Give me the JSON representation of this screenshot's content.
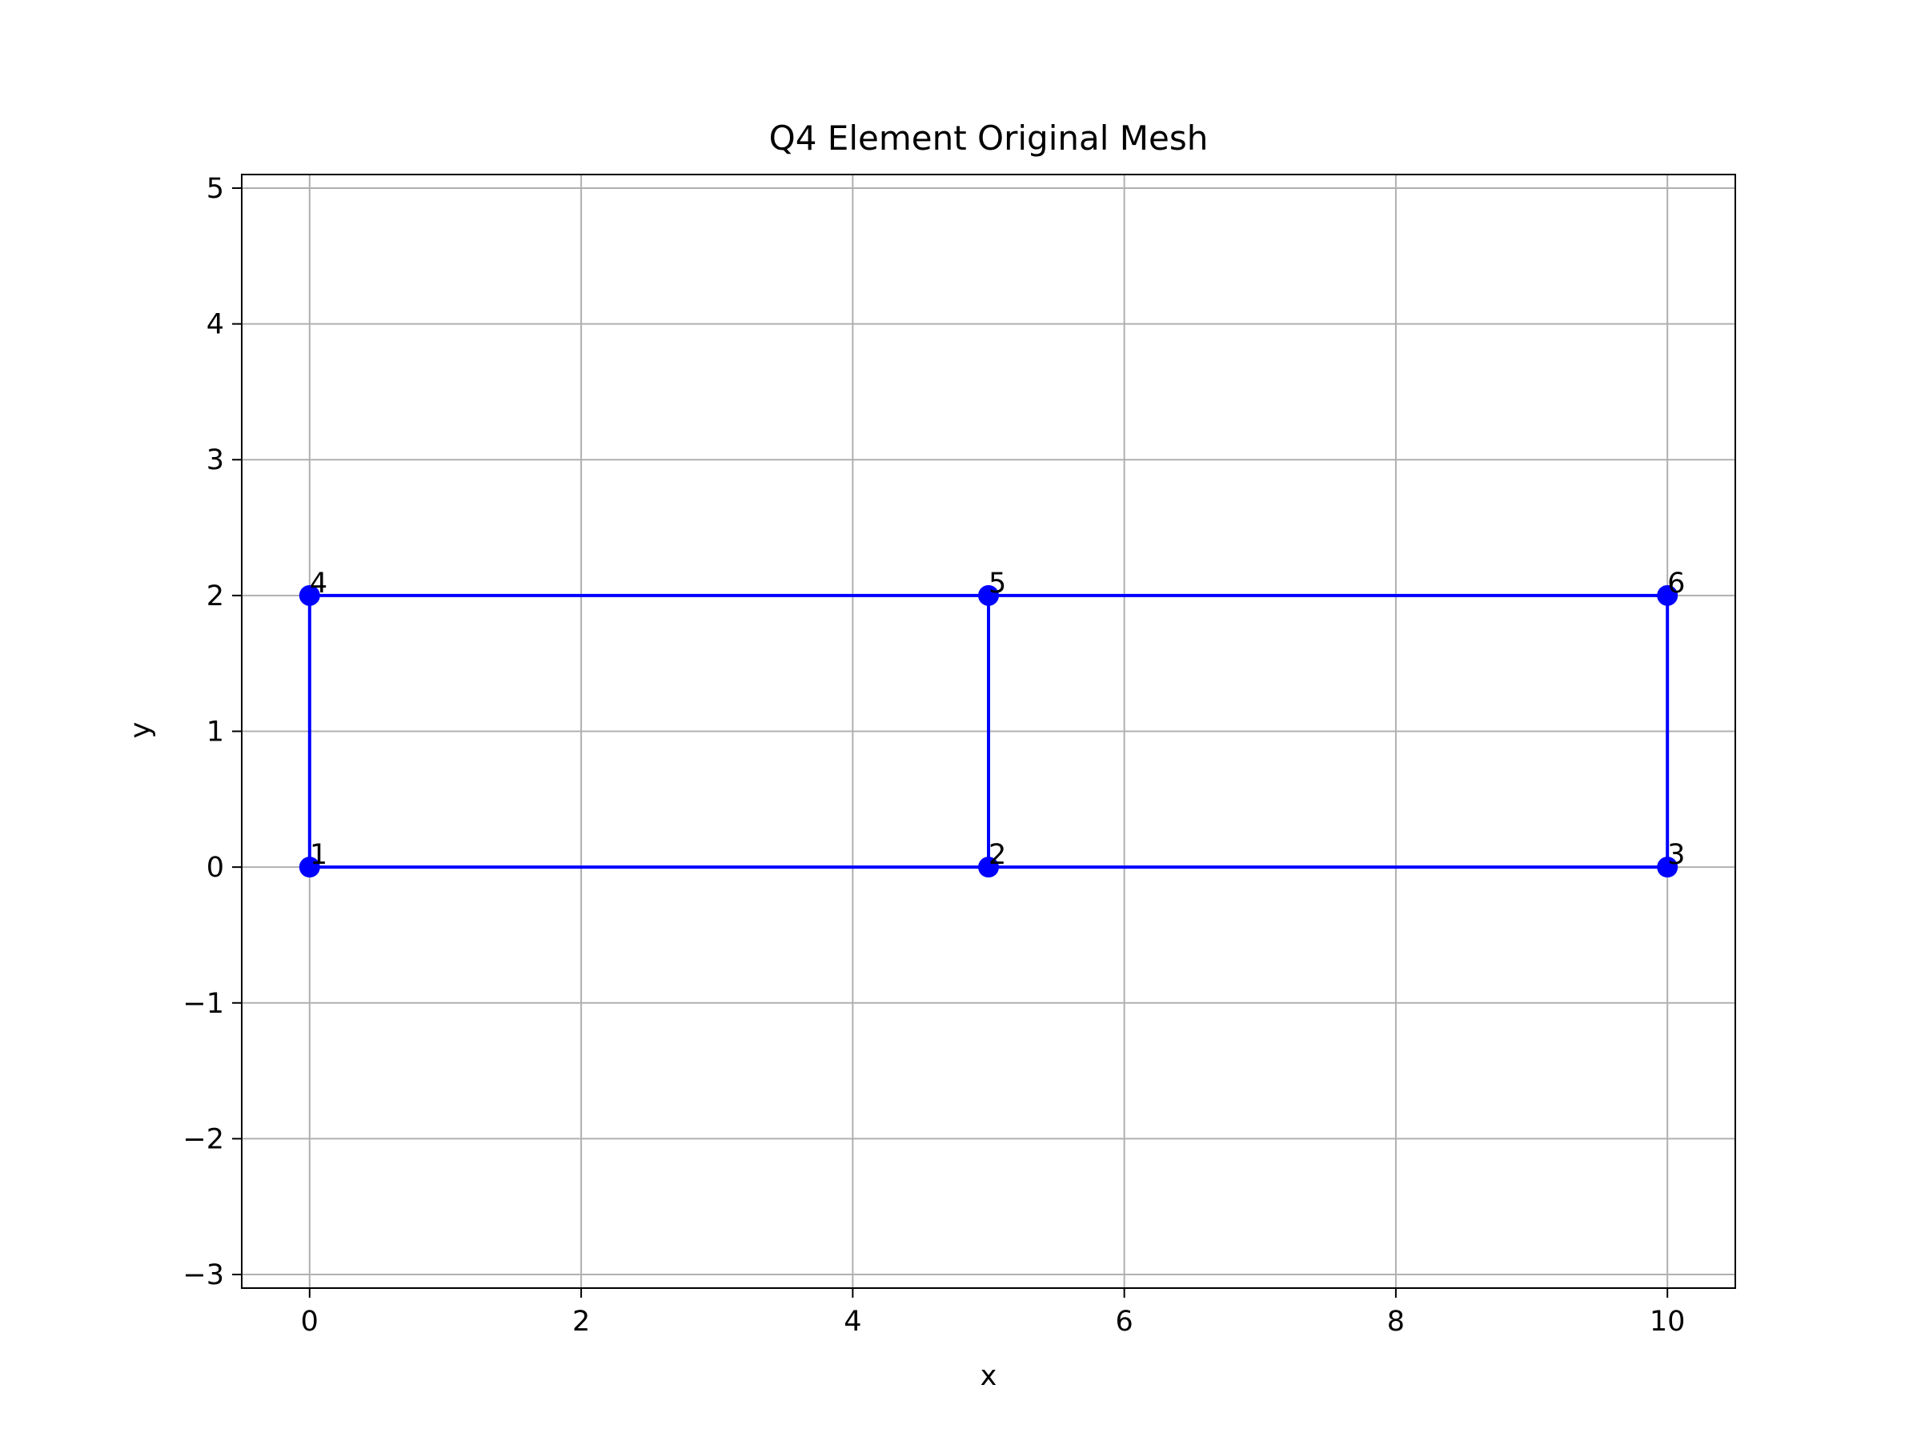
{
  "chart_data": {
    "type": "mesh",
    "title": "Q4 Element Original Mesh",
    "xlabel": "x",
    "ylabel": "y",
    "xlim": [
      -0.5,
      10.5
    ],
    "ylim": [
      -3.1,
      5.1
    ],
    "grid": true,
    "xticks": [
      0,
      2,
      4,
      6,
      8,
      10
    ],
    "xtick_labels": [
      "0",
      "2",
      "4",
      "6",
      "8",
      "10"
    ],
    "yticks": [
      -3,
      -2,
      -1,
      0,
      1,
      2,
      3,
      4,
      5
    ],
    "ytick_labels": [
      "−3",
      "−2",
      "−1",
      "0",
      "1",
      "2",
      "3",
      "4",
      "5"
    ],
    "nodes": [
      {
        "id": "1",
        "x": 0,
        "y": 0
      },
      {
        "id": "2",
        "x": 5,
        "y": 0
      },
      {
        "id": "3",
        "x": 10,
        "y": 0
      },
      {
        "id": "4",
        "x": 0,
        "y": 2
      },
      {
        "id": "5",
        "x": 5,
        "y": 2
      },
      {
        "id": "6",
        "x": 10,
        "y": 2
      }
    ],
    "elements": [
      [
        "1",
        "2",
        "5",
        "4"
      ],
      [
        "2",
        "3",
        "6",
        "5"
      ]
    ],
    "colors": {
      "mesh": "#0000ff",
      "grid": "#b0b0b0",
      "axes": "#000000"
    }
  }
}
